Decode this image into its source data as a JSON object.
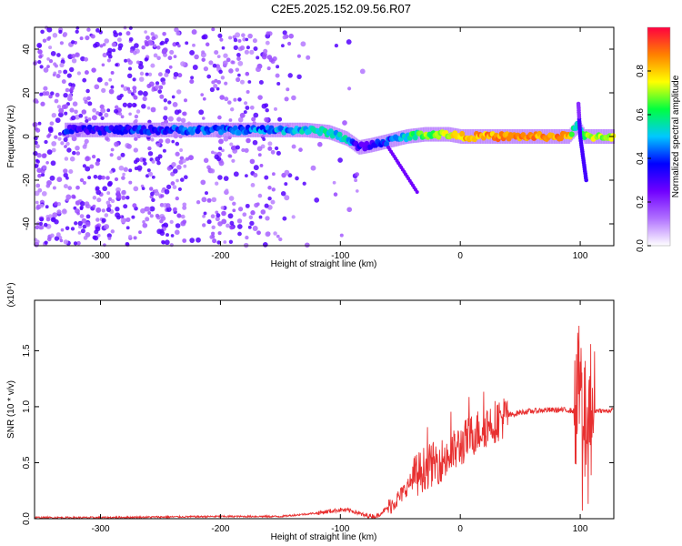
{
  "title": "C2E5.2025.152.09.56.R07",
  "chart_data": [
    {
      "type": "heatmap",
      "xlabel": "Height of straight line (km)",
      "ylabel": "Frequency (Hz)",
      "xlim": [
        -355,
        128
      ],
      "ylim": [
        -50,
        50
      ],
      "xticks": [
        -300,
        -200,
        -100,
        0,
        100
      ],
      "xtick_labels": [
        "-300",
        "-200",
        "-100",
        "0",
        "100"
      ],
      "yticks": [
        -40,
        -20,
        0,
        20,
        40
      ],
      "ytick_labels": [
        "-40",
        "-20",
        "0",
        "20",
        "40"
      ],
      "colorbar": {
        "label": "Normalized spectral amplitude",
        "range": [
          0,
          1
        ],
        "ticks": [
          0.0,
          0.2,
          0.4,
          0.6,
          0.8
        ],
        "tick_labels": [
          "0.0",
          "0.2",
          "0.4",
          "0.6",
          "0.8"
        ],
        "colormap": [
          "#ffffff",
          "#b070ff",
          "#7000ff",
          "#0000ff",
          "#00c8ff",
          "#00ff40",
          "#ffff00",
          "#ff8000",
          "#ff0040"
        ]
      },
      "ridge": {
        "x": [
          -330,
          -300,
          -250,
          -200,
          -160,
          -130,
          -110,
          -95,
          -85,
          -75,
          -60,
          -45,
          -30,
          -10,
          0,
          30,
          60,
          90,
          98,
          103,
          110,
          128
        ],
        "freq": [
          3,
          3,
          3,
          3,
          3,
          3,
          2,
          -1,
          -5,
          -4,
          -2,
          0,
          1,
          1,
          0,
          0,
          0,
          0,
          5,
          0,
          0,
          0
        ],
        "amplitude": [
          0.35,
          0.35,
          0.38,
          0.42,
          0.45,
          0.5,
          0.55,
          0.5,
          0.3,
          0.35,
          0.4,
          0.55,
          0.65,
          0.75,
          0.8,
          0.85,
          0.85,
          0.85,
          0.5,
          0.6,
          0.7,
          0.7
        ]
      }
    },
    {
      "type": "line",
      "xlabel": "Height of straight line (km)",
      "ylabel": "SNR (10 * v/v)",
      "y_multiplier": "(x10⁴)",
      "xlim": [
        -355,
        128
      ],
      "ylim": [
        0,
        1.95
      ],
      "xticks": [
        -300,
        -200,
        -100,
        0,
        100
      ],
      "xtick_labels": [
        "-300",
        "-200",
        "-100",
        "0",
        "100"
      ],
      "yticks": [
        0.0,
        0.5,
        1.0,
        1.5
      ],
      "ytick_labels": [
        "0.0",
        "0.5",
        "1.0",
        "1.5"
      ],
      "color": "#e83030",
      "series": [
        {
          "x": [
            -355,
            -300,
            -250,
            -200,
            -150,
            -120,
            -100,
            -90,
            -80,
            -70,
            -60,
            -50,
            -40,
            -30,
            -20,
            -10,
            0,
            10,
            20,
            30,
            40,
            50,
            60,
            70,
            80,
            90,
            95,
            100,
            103,
            106,
            110,
            115,
            120,
            128
          ],
          "y": [
            0.01,
            0.01,
            0.015,
            0.02,
            0.02,
            0.05,
            0.08,
            0.07,
            0.03,
            0.02,
            0.1,
            0.2,
            0.35,
            0.45,
            0.5,
            0.55,
            0.65,
            0.75,
            0.82,
            0.88,
            0.92,
            0.95,
            0.96,
            0.97,
            0.97,
            0.97,
            0.96,
            1.2,
            0.7,
            1.1,
            0.95,
            0.97,
            0.96,
            0.97
          ]
        }
      ]
    }
  ]
}
